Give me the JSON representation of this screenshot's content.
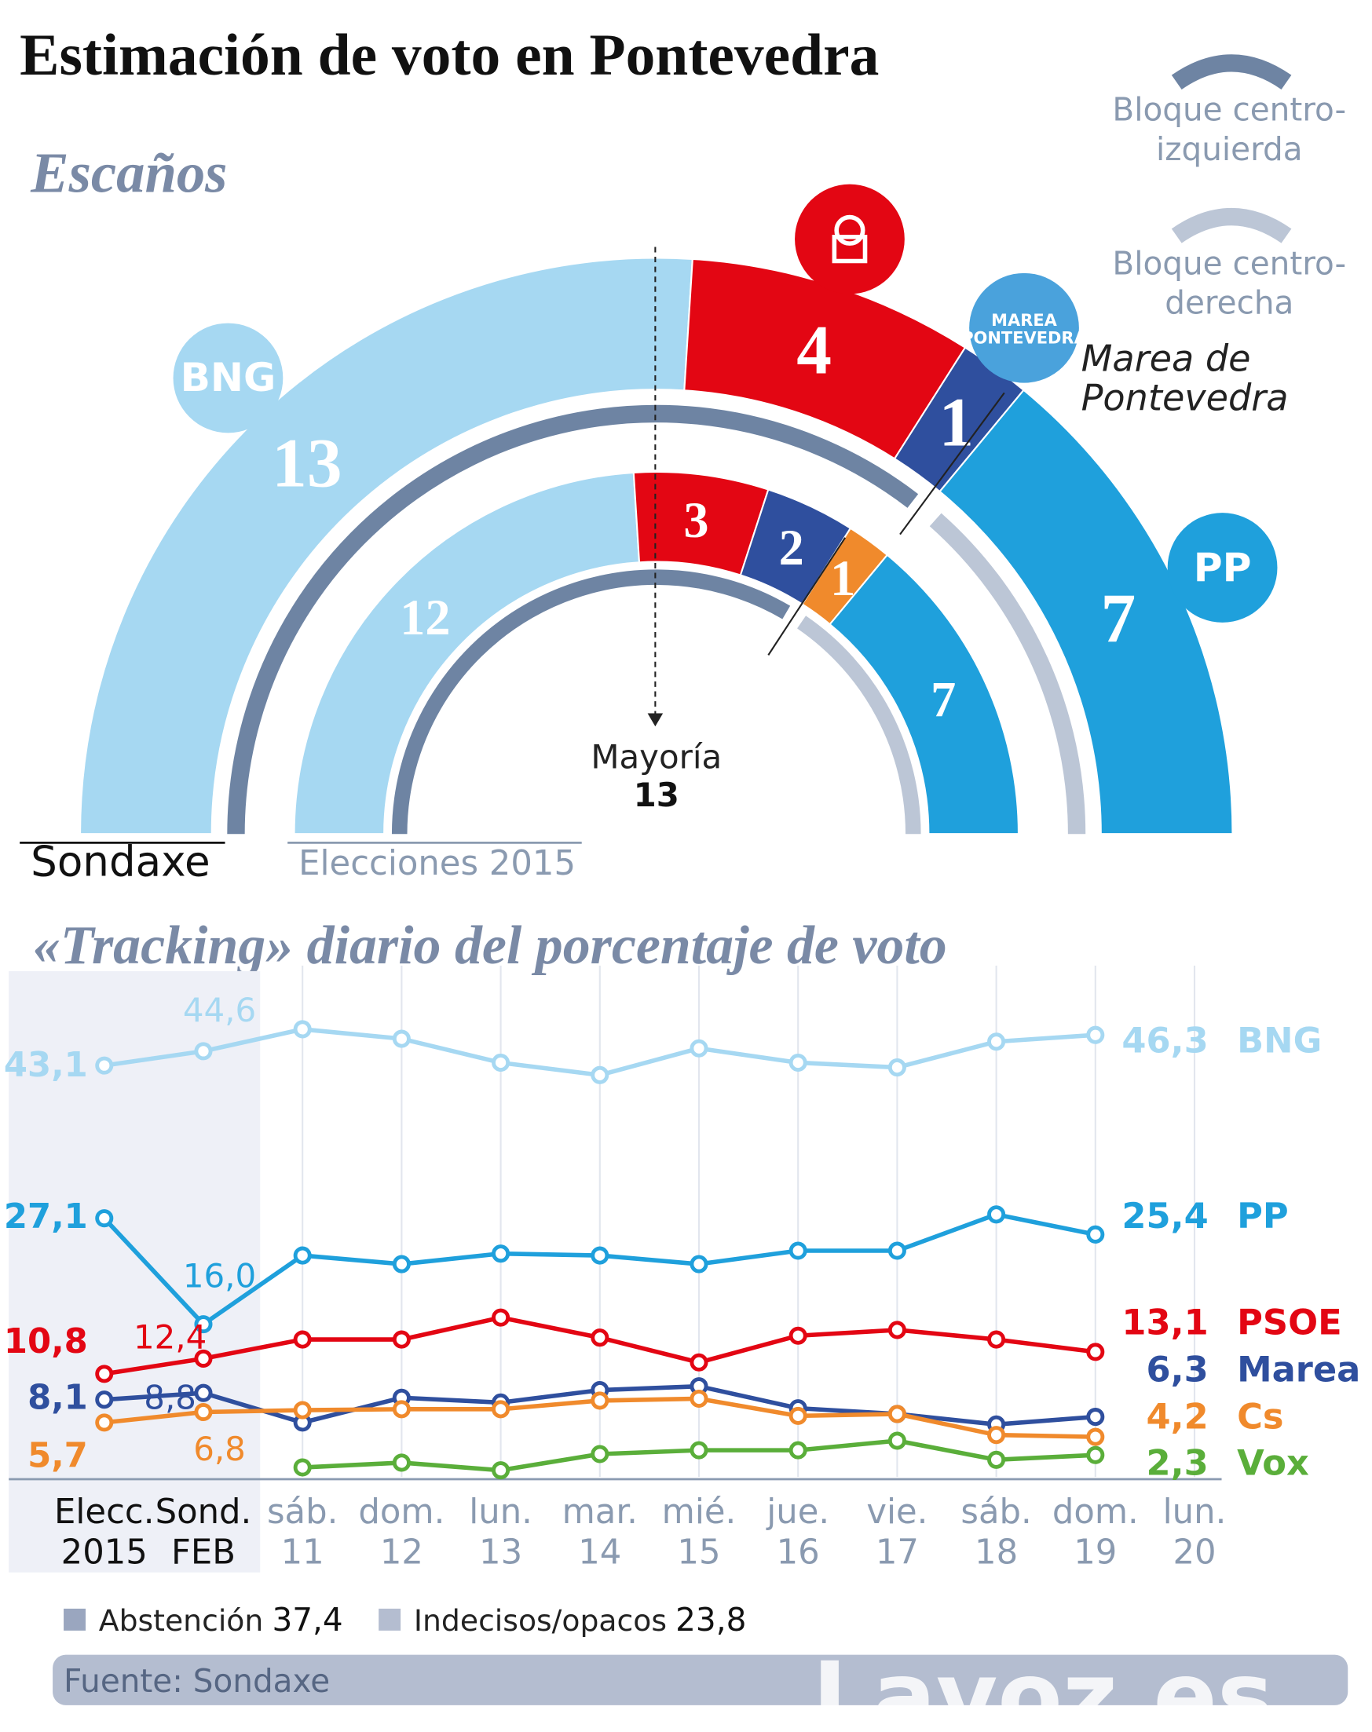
{
  "title": "Estimación de voto en Pontevedra",
  "chart_data": [
    {
      "type": "semicircle",
      "title": "Escaños",
      "categories": [
        "Sondaxe",
        "Elecciones 2015"
      ],
      "series": [
        {
          "logo": "BNG",
          "color": "#a6d8f2",
          "values": [
            13,
            12
          ]
        },
        {
          "color": "#e30613",
          "values": [
            4,
            3
          ]
        },
        {
          "logo": "MAREA PONTEVEDRA",
          "label": "Marea de Pontevedra",
          "color": "#2f4f9e",
          "values": [
            1,
            2
          ]
        },
        {
          "color": "#f08a2c",
          "values": [
            null,
            1
          ]
        },
        {
          "logo": "PP",
          "color": "#1fa0dc",
          "values": [
            7,
            7
          ]
        }
      ],
      "blocs": [
        {
          "name": "Bloque centro-izquierda",
          "color": "#6e84a3"
        },
        {
          "name": "Bloque centro-derecha",
          "color": "#bcc6d6"
        }
      ],
      "majority": {
        "label": "Mayoría",
        "value": 13
      }
    },
    {
      "type": "line",
      "title": "«Tracking» diario del porcentaje de voto",
      "categories": [
        "Elecc. 2015",
        "Sond. FEB",
        "sáb. 11",
        "dom. 12",
        "lun. 13",
        "mar. 14",
        "mié. 15",
        "jue. 16",
        "vie. 17",
        "sáb. 18",
        "dom. 19",
        "lun. 20"
      ],
      "ylim": [
        0,
        50
      ],
      "series": [
        {
          "name": "BNG",
          "color": "#a6d8f2",
          "values": [
            43.1,
            44.6,
            46.9,
            45.9,
            43.4,
            42.1,
            44.9,
            43.4,
            42.9,
            45.6,
            46.3,
            null
          ],
          "value_labels": [
            "43,1",
            "44,6",
            null,
            null,
            null,
            null,
            null,
            null,
            null,
            null,
            "46,3",
            null
          ]
        },
        {
          "name": "PP",
          "color": "#1fa0dc",
          "values": [
            27.1,
            16.0,
            23.2,
            22.3,
            23.4,
            23.2,
            22.3,
            23.7,
            23.7,
            27.5,
            25.4,
            null
          ],
          "value_labels": [
            "27,1",
            "16,0",
            null,
            null,
            null,
            null,
            null,
            null,
            null,
            null,
            "25,4",
            null
          ]
        },
        {
          "name": "PSOE",
          "color": "#e30613",
          "values": [
            10.8,
            12.4,
            14.4,
            14.4,
            16.7,
            14.6,
            12.0,
            14.8,
            15.4,
            14.4,
            13.1,
            null
          ],
          "value_labels": [
            "10,8",
            "12,4",
            null,
            null,
            null,
            null,
            null,
            null,
            null,
            null,
            "13,1",
            null
          ]
        },
        {
          "name": "Marea",
          "color": "#2f4f9e",
          "values": [
            8.1,
            8.8,
            5.7,
            8.3,
            7.8,
            9.1,
            9.5,
            7.2,
            6.6,
            5.5,
            6.3,
            null
          ],
          "value_labels": [
            "8,1",
            "8,8",
            null,
            null,
            null,
            null,
            null,
            null,
            null,
            null,
            "6,3",
            null
          ]
        },
        {
          "name": "Cs",
          "color": "#f08a2c",
          "values": [
            5.7,
            6.8,
            7.0,
            7.1,
            7.1,
            8.0,
            8.2,
            6.4,
            6.6,
            4.4,
            4.2,
            null
          ],
          "value_labels": [
            "5,7",
            "6,8",
            null,
            null,
            null,
            null,
            null,
            null,
            null,
            null,
            "4,2",
            null
          ]
        },
        {
          "name": "Vox",
          "color": "#5aae3a",
          "values": [
            null,
            null,
            1.0,
            1.5,
            0.7,
            2.4,
            2.8,
            2.8,
            3.8,
            1.8,
            2.3,
            null
          ],
          "value_labels": [
            null,
            null,
            null,
            null,
            null,
            null,
            null,
            null,
            null,
            null,
            "2,3",
            null
          ]
        }
      ]
    }
  ],
  "footer": {
    "notes": [
      {
        "label": "Abstención",
        "value": "37,4"
      },
      {
        "label": "Indecisos/opacos",
        "value": "23,8"
      }
    ],
    "source": "Fuente: Sondaxe",
    "watermark": "Lavoz.es"
  }
}
